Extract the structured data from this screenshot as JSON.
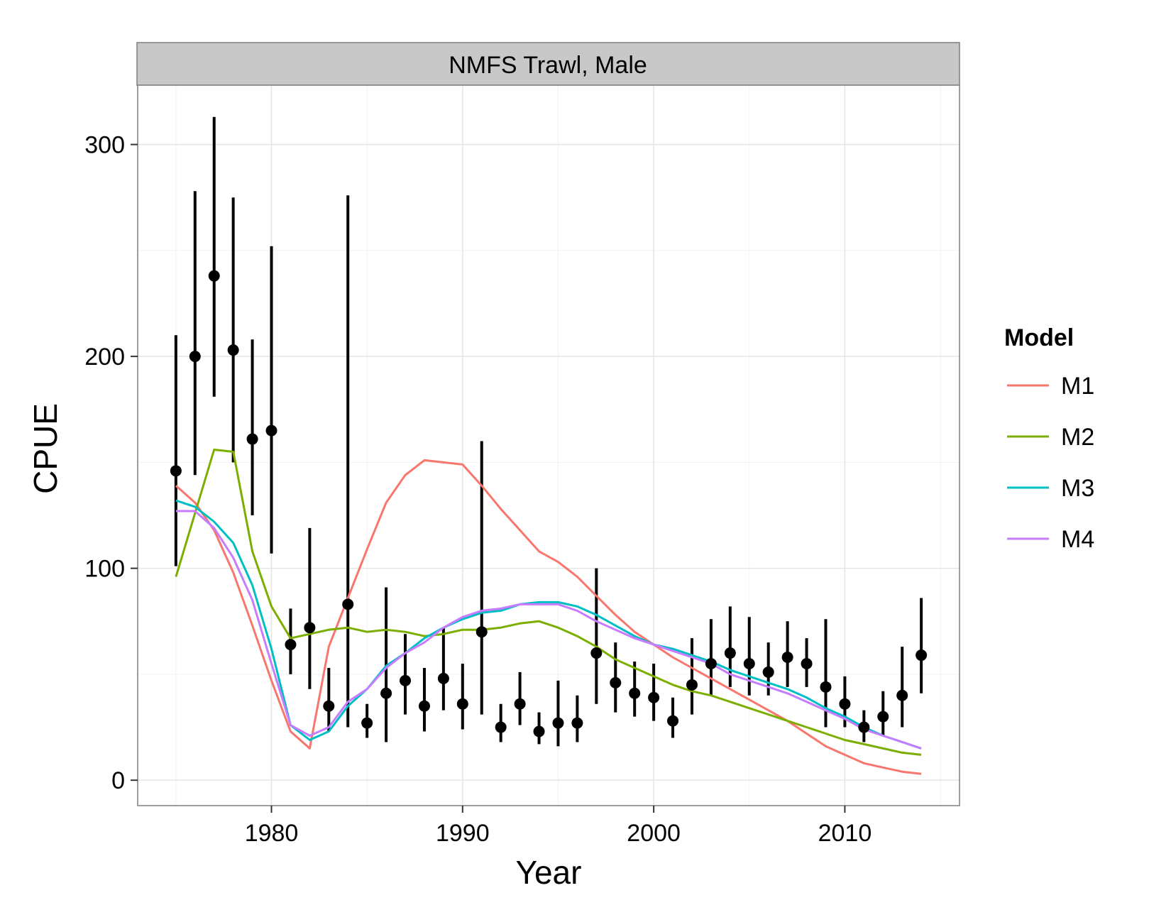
{
  "chart_data": {
    "type": "line",
    "facet_title": "NMFS Trawl, Male",
    "xlabel": "Year",
    "ylabel": "CPUE",
    "xlim": [
      1973.0,
      2016.0
    ],
    "ylim": [
      -12,
      328
    ],
    "x_ticks": [
      1980,
      1990,
      2000,
      2010
    ],
    "y_ticks": [
      0,
      100,
      200,
      300
    ],
    "grid": true,
    "legend": {
      "title": "Model",
      "position": "right"
    },
    "observed": {
      "years": [
        1975,
        1976,
        1977,
        1978,
        1979,
        1980,
        1981,
        1982,
        1983,
        1984,
        1985,
        1986,
        1987,
        1988,
        1989,
        1990,
        1991,
        1992,
        1993,
        1994,
        1995,
        1996,
        1997,
        1998,
        1999,
        2000,
        2001,
        2002,
        2003,
        2004,
        2005,
        2006,
        2007,
        2008,
        2009,
        2010,
        2011,
        2012,
        2013,
        2014
      ],
      "cpue": [
        146,
        200,
        238,
        203,
        161,
        165,
        64,
        72,
        35,
        83,
        27,
        41,
        47,
        35,
        48,
        36,
        70,
        25,
        36,
        23,
        27,
        27,
        60,
        46,
        41,
        39,
        28,
        45,
        55,
        60,
        55,
        51,
        58,
        55,
        44,
        36,
        25,
        30,
        40,
        59
      ],
      "lower": [
        101,
        144,
        181,
        150,
        125,
        107,
        50,
        43,
        23,
        25,
        20,
        18,
        31,
        23,
        33,
        24,
        31,
        18,
        26,
        17,
        16,
        18,
        36,
        32,
        30,
        28,
        20,
        31,
        40,
        44,
        40,
        40,
        44,
        44,
        25,
        25,
        18,
        21,
        25,
        41
      ],
      "upper": [
        210,
        278,
        313,
        275,
        208,
        252,
        81,
        119,
        53,
        276,
        36,
        91,
        69,
        53,
        72,
        55,
        160,
        36,
        51,
        32,
        47,
        40,
        100,
        65,
        56,
        55,
        39,
        67,
        76,
        82,
        77,
        65,
        75,
        67,
        76,
        49,
        33,
        42,
        63,
        86
      ]
    },
    "series": [
      {
        "name": "M1",
        "color": "#F8766D",
        "values": [
          139,
          131,
          118,
          98,
          73,
          47,
          23,
          15,
          63,
          86,
          109,
          131,
          144,
          151,
          150,
          149,
          139,
          128,
          118,
          108,
          103,
          96,
          87,
          78,
          70,
          64,
          58,
          53,
          48,
          43,
          38,
          33,
          28,
          22,
          16,
          12,
          8,
          6,
          4,
          3
        ]
      },
      {
        "name": "M2",
        "color": "#7CAE00",
        "values": [
          96,
          126,
          156,
          155,
          108,
          82,
          67,
          69,
          71,
          72,
          70,
          71,
          70,
          68,
          69,
          71,
          71,
          72,
          74,
          75,
          72,
          68,
          63,
          57,
          53,
          49,
          45,
          42,
          40,
          37,
          34,
          31,
          28,
          25,
          22,
          19,
          17,
          15,
          13,
          12
        ]
      },
      {
        "name": "M3",
        "color": "#00BFC4",
        "values": [
          132,
          129,
          122,
          112,
          92,
          62,
          26,
          19,
          23,
          35,
          43,
          54,
          60,
          67,
          72,
          76,
          79,
          80,
          83,
          84,
          84,
          82,
          78,
          73,
          68,
          64,
          62,
          59,
          56,
          52,
          49,
          46,
          43,
          39,
          34,
          30,
          25,
          21,
          18,
          15
        ]
      },
      {
        "name": "M4",
        "color": "#C77CFF",
        "values": [
          127,
          127,
          119,
          105,
          85,
          55,
          26,
          21,
          25,
          37,
          43,
          53,
          60,
          65,
          72,
          77,
          80,
          81,
          83,
          83,
          83,
          80,
          75,
          71,
          67,
          64,
          61,
          58,
          55,
          50,
          47,
          44,
          41,
          37,
          33,
          29,
          24,
          21,
          18,
          15
        ]
      }
    ]
  }
}
